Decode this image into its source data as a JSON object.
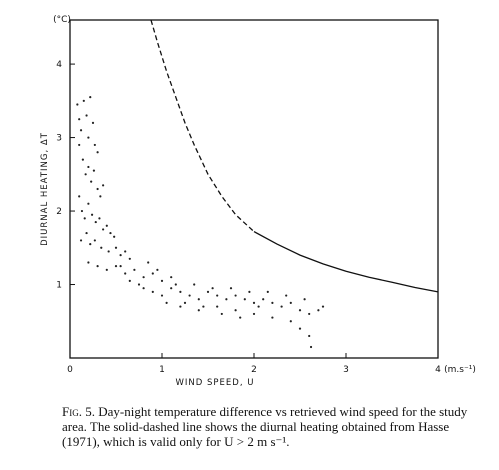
{
  "chart_data": {
    "type": "scatter",
    "title": "",
    "xlabel": "WIND  SPEED, U",
    "ylabel": "DIURNAL HEATING, ΔT",
    "x_unit": "(m.s⁻¹)",
    "y_unit": "(°C)",
    "xlim": [
      0,
      4
    ],
    "ylim": [
      0,
      4.6
    ],
    "x_ticks": [
      "0",
      "1",
      "2",
      "3",
      "4"
    ],
    "y_ticks": [
      "1",
      "2",
      "3",
      "4"
    ],
    "grid": false,
    "series": [
      {
        "kind": "scatter",
        "color": "#222222",
        "points": [
          [
            0.08,
            3.45
          ],
          [
            0.1,
            3.25
          ],
          [
            0.12,
            3.1
          ],
          [
            0.15,
            3.5
          ],
          [
            0.18,
            3.3
          ],
          [
            0.2,
            3.0
          ],
          [
            0.22,
            3.55
          ],
          [
            0.25,
            3.2
          ],
          [
            0.27,
            2.9
          ],
          [
            0.3,
            2.8
          ],
          [
            0.1,
            2.9
          ],
          [
            0.14,
            2.7
          ],
          [
            0.17,
            2.5
          ],
          [
            0.2,
            2.6
          ],
          [
            0.23,
            2.4
          ],
          [
            0.26,
            2.55
          ],
          [
            0.3,
            2.3
          ],
          [
            0.33,
            2.2
          ],
          [
            0.36,
            2.35
          ],
          [
            0.1,
            2.2
          ],
          [
            0.13,
            2.0
          ],
          [
            0.16,
            1.9
          ],
          [
            0.2,
            2.1
          ],
          [
            0.24,
            1.95
          ],
          [
            0.28,
            1.85
          ],
          [
            0.32,
            1.9
          ],
          [
            0.36,
            1.75
          ],
          [
            0.4,
            1.8
          ],
          [
            0.44,
            1.7
          ],
          [
            0.48,
            1.65
          ],
          [
            0.12,
            1.6
          ],
          [
            0.18,
            1.7
          ],
          [
            0.22,
            1.55
          ],
          [
            0.27,
            1.6
          ],
          [
            0.34,
            1.5
          ],
          [
            0.42,
            1.45
          ],
          [
            0.5,
            1.5
          ],
          [
            0.55,
            1.4
          ],
          [
            0.6,
            1.45
          ],
          [
            0.65,
            1.35
          ],
          [
            0.2,
            1.3
          ],
          [
            0.3,
            1.25
          ],
          [
            0.4,
            1.2
          ],
          [
            0.5,
            1.25
          ],
          [
            0.6,
            1.15
          ],
          [
            0.7,
            1.2
          ],
          [
            0.8,
            1.1
          ],
          [
            0.9,
            1.15
          ],
          [
            1.0,
            1.05
          ],
          [
            1.1,
            1.1
          ],
          [
            0.8,
            0.95
          ],
          [
            0.9,
            0.9
          ],
          [
            1.0,
            0.85
          ],
          [
            1.1,
            0.95
          ],
          [
            1.2,
            0.9
          ],
          [
            1.3,
            0.85
          ],
          [
            1.4,
            0.8
          ],
          [
            1.5,
            0.9
          ],
          [
            1.6,
            0.85
          ],
          [
            1.7,
            0.8
          ],
          [
            1.8,
            0.85
          ],
          [
            1.9,
            0.8
          ],
          [
            2.0,
            0.75
          ],
          [
            2.1,
            0.8
          ],
          [
            2.2,
            0.75
          ],
          [
            2.3,
            0.7
          ],
          [
            2.4,
            0.75
          ],
          [
            2.5,
            0.65
          ],
          [
            2.6,
            0.6
          ],
          [
            2.7,
            0.65
          ],
          [
            1.2,
            0.7
          ],
          [
            1.4,
            0.65
          ],
          [
            1.6,
            0.7
          ],
          [
            1.8,
            0.65
          ],
          [
            2.0,
            0.6
          ],
          [
            2.2,
            0.55
          ],
          [
            2.4,
            0.5
          ],
          [
            2.5,
            0.4
          ],
          [
            2.6,
            0.3
          ],
          [
            2.62,
            0.15
          ],
          [
            0.95,
            1.2
          ],
          [
            1.15,
            1.0
          ],
          [
            1.35,
            1.0
          ],
          [
            1.55,
            0.95
          ],
          [
            1.75,
            0.95
          ],
          [
            1.95,
            0.9
          ],
          [
            2.15,
            0.9
          ],
          [
            2.35,
            0.85
          ],
          [
            2.55,
            0.8
          ],
          [
            2.75,
            0.7
          ],
          [
            0.55,
            1.25
          ],
          [
            0.65,
            1.05
          ],
          [
            0.75,
            1.0
          ],
          [
            0.85,
            1.3
          ],
          [
            1.05,
            0.75
          ],
          [
            1.25,
            0.75
          ],
          [
            1.45,
            0.7
          ],
          [
            1.65,
            0.6
          ],
          [
            1.85,
            0.55
          ],
          [
            2.05,
            0.7
          ]
        ]
      },
      {
        "kind": "line",
        "style": "dashed",
        "color": "#111111",
        "x": [
          0.88,
          0.95,
          1.05,
          1.15,
          1.25,
          1.35,
          1.5,
          1.65,
          1.8,
          2.0
        ],
        "y": [
          4.6,
          4.3,
          3.9,
          3.55,
          3.2,
          2.9,
          2.5,
          2.2,
          1.95,
          1.72
        ]
      },
      {
        "kind": "line",
        "style": "solid",
        "color": "#111111",
        "x": [
          2.0,
          2.25,
          2.5,
          2.75,
          3.0,
          3.25,
          3.5,
          3.75,
          4.0
        ],
        "y": [
          1.72,
          1.55,
          1.4,
          1.28,
          1.18,
          1.1,
          1.03,
          0.96,
          0.9
        ]
      }
    ]
  },
  "caption": {
    "label": "Fig. 5.",
    "text": "Day-night temperature difference vs retrieved wind speed for the study area. The solid-dashed line shows the diurnal heating obtained from Hasse (1971), which is valid only for U > 2 m s⁻¹."
  }
}
